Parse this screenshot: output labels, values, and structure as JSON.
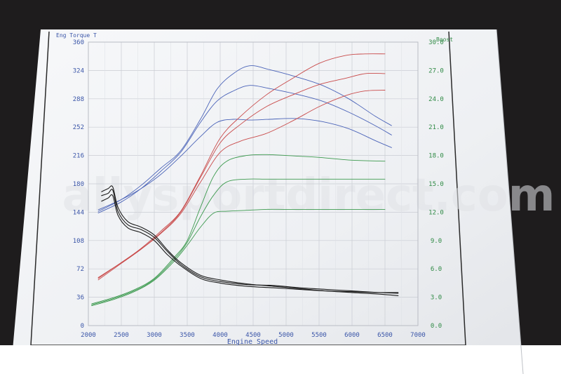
{
  "watermark": "allysportdirect.com",
  "colors": {
    "background": "#1e1c1d",
    "paper": "#f4f5f7",
    "grid": "#c9ccd3",
    "left_axis": "#3a55a8",
    "right_axis": "#2f8a45",
    "torque": "#4a63b8",
    "power": "#c94a4a",
    "boost": "#3c9a4e",
    "afr": "#1c1c1c"
  },
  "chart_data": {
    "type": "line",
    "xlabel": "Engine Speed",
    "ylabel": "Eng Torque T",
    "y2label": "Boost",
    "xlim": [
      2000,
      7000
    ],
    "ylim": [
      0,
      360
    ],
    "y2lim": [
      0,
      30
    ],
    "grid": true,
    "x_ticks": [
      2000,
      2500,
      3000,
      3500,
      4000,
      4500,
      5000,
      5500,
      6000,
      6500,
      7000
    ],
    "y_ticks": [
      0,
      36,
      72,
      108,
      144,
      180,
      216,
      252,
      288,
      324,
      360
    ],
    "y2_ticks": [
      "0.0",
      "3.0",
      "6.0",
      "9.0",
      "12.0",
      "15.0",
      "18.0",
      "21.0",
      "24.0",
      "27.0",
      "30.0"
    ],
    "series": [
      {
        "group": "torque",
        "axis": "left",
        "x": [
          2150,
          2500,
          2800,
          3100,
          3400,
          3700,
          3950,
          4200,
          4450,
          4750,
          5150,
          5550,
          5950,
          6350,
          6600
        ],
        "y": [
          145,
          160,
          178,
          200,
          222,
          262,
          300,
          320,
          330,
          325,
          316,
          305,
          288,
          266,
          254
        ]
      },
      {
        "group": "torque",
        "axis": "left",
        "x": [
          2150,
          2500,
          2800,
          3100,
          3400,
          3700,
          3950,
          4200,
          4450,
          4750,
          5150,
          5550,
          5950,
          6350,
          6600
        ],
        "y": [
          143,
          157,
          174,
          196,
          220,
          258,
          285,
          298,
          305,
          301,
          294,
          285,
          271,
          254,
          242
        ]
      },
      {
        "group": "torque",
        "axis": "left",
        "x": [
          2150,
          2500,
          2800,
          3100,
          3400,
          3700,
          3950,
          4200,
          4450,
          4750,
          5150,
          5550,
          5950,
          6350,
          6600
        ],
        "y": [
          147,
          160,
          174,
          192,
          215,
          240,
          258,
          262,
          261,
          262,
          263,
          259,
          250,
          235,
          226
        ]
      },
      {
        "group": "power",
        "axis": "left",
        "x": [
          2150,
          2500,
          2800,
          3100,
          3400,
          3700,
          4000,
          4300,
          4700,
          5100,
          5500,
          5900,
          6200,
          6500
        ],
        "y": [
          60,
          80,
          98,
          120,
          145,
          190,
          238,
          265,
          293,
          314,
          333,
          343,
          345,
          345
        ]
      },
      {
        "group": "power",
        "axis": "left",
        "x": [
          2150,
          2500,
          2800,
          3100,
          3400,
          3700,
          4000,
          4300,
          4700,
          5100,
          5500,
          5900,
          6200,
          6500
        ],
        "y": [
          58,
          79,
          97,
          118,
          144,
          188,
          232,
          255,
          278,
          293,
          306,
          314,
          320,
          320
        ]
      },
      {
        "group": "power",
        "axis": "left",
        "x": [
          2150,
          2500,
          2800,
          3100,
          3400,
          3700,
          4000,
          4300,
          4700,
          5100,
          5500,
          5900,
          6200,
          6500
        ],
        "y": [
          61,
          80,
          97,
          117,
          142,
          182,
          220,
          234,
          244,
          260,
          278,
          292,
          298,
          299
        ]
      },
      {
        "group": "boost",
        "axis": "right",
        "x": [
          2050,
          2400,
          2700,
          3000,
          3300,
          3500,
          3700,
          3900,
          4100,
          4400,
          4700,
          5000,
          5500,
          6000,
          6500
        ],
        "y": [
          2.3,
          3.0,
          3.8,
          5.0,
          7.2,
          9.0,
          12.5,
          15.8,
          17.4,
          18.0,
          18.1,
          18.0,
          17.8,
          17.5,
          17.4
        ]
      },
      {
        "group": "boost",
        "axis": "right",
        "x": [
          2050,
          2400,
          2700,
          3000,
          3300,
          3500,
          3700,
          3900,
          4100,
          4400,
          4700,
          5000,
          5500,
          6000,
          6500
        ],
        "y": [
          2.2,
          2.9,
          3.7,
          4.9,
          7.0,
          8.8,
          11.5,
          13.8,
          15.2,
          15.5,
          15.5,
          15.5,
          15.5,
          15.5,
          15.5
        ]
      },
      {
        "group": "boost",
        "axis": "right",
        "x": [
          2050,
          2400,
          2700,
          3000,
          3300,
          3500,
          3700,
          3900,
          4100,
          4400,
          4700,
          5000,
          5500,
          6000,
          6500
        ],
        "y": [
          2.1,
          2.8,
          3.6,
          4.8,
          6.8,
          8.5,
          10.4,
          11.9,
          12.1,
          12.2,
          12.3,
          12.3,
          12.3,
          12.3,
          12.3
        ]
      },
      {
        "group": "afr",
        "axis": "left",
        "x": [
          2200,
          2300,
          2370,
          2450,
          2600,
          2800,
          3000,
          3200,
          3400,
          3700,
          4000,
          4400,
          4800,
          5200,
          5600,
          6000,
          6400,
          6700
        ],
        "y": [
          170,
          174,
          176,
          150,
          132,
          125,
          115,
          96,
          80,
          64,
          58,
          53,
          50,
          47,
          44,
          42,
          40,
          38
        ]
      },
      {
        "group": "afr",
        "axis": "left",
        "x": [
          2200,
          2300,
          2370,
          2450,
          2600,
          2800,
          3000,
          3200,
          3400,
          3700,
          4000,
          4400,
          4800,
          5200,
          5600,
          6000,
          6400,
          6700
        ],
        "y": [
          165,
          168,
          172,
          145,
          128,
          122,
          112,
          94,
          78,
          62,
          56,
          52,
          51,
          48,
          46,
          44,
          42,
          41
        ]
      },
      {
        "group": "afr",
        "axis": "left",
        "x": [
          2200,
          2300,
          2370,
          2450,
          2600,
          2800,
          3000,
          3200,
          3400,
          3700,
          4000,
          4400,
          4800,
          5200,
          5600,
          6000,
          6400,
          6700
        ],
        "y": [
          158,
          162,
          165,
          140,
          124,
          118,
          108,
          90,
          76,
          60,
          54,
          50,
          48,
          46,
          44,
          43,
          42,
          42
        ]
      }
    ]
  }
}
